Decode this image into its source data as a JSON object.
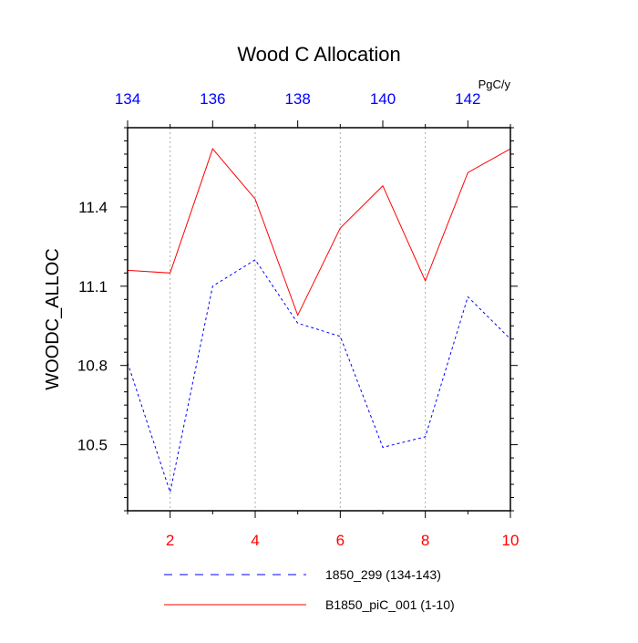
{
  "chart_data": {
    "type": "line",
    "title": "Wood C Allocation",
    "units": "PgC/y",
    "ylabel": "WOODC_ALLOC",
    "ylim": [
      10.25,
      11.7
    ],
    "yticks": [
      "10.5",
      "10.8",
      "11.1",
      "11.4"
    ],
    "x_bottom": {
      "lim": [
        1,
        10
      ],
      "ticks": [
        "2",
        "4",
        "6",
        "8",
        "10"
      ],
      "color": "#ff0000"
    },
    "x_top": {
      "lim": [
        134,
        143
      ],
      "ticks": [
        "134",
        "136",
        "138",
        "140",
        "142"
      ],
      "color": "#0000ff"
    },
    "grid": "vertical dotted at major x ticks",
    "legend_position": "bottom",
    "series": [
      {
        "name": "1850_299 (134-143)",
        "axis": "top",
        "color": "#0000ff",
        "style": "dashed",
        "x": [
          134,
          135,
          136,
          137,
          138,
          139,
          140,
          141,
          142,
          143
        ],
        "values": [
          10.81,
          10.32,
          11.1,
          11.2,
          10.96,
          10.91,
          10.49,
          10.53,
          11.06,
          10.9
        ]
      },
      {
        "name": "B1850_piC_001 (1-10)",
        "axis": "bottom",
        "color": "#ff0000",
        "style": "solid",
        "x": [
          1,
          2,
          3,
          4,
          5,
          6,
          7,
          8,
          9,
          10
        ],
        "values": [
          11.16,
          11.15,
          11.62,
          11.43,
          10.99,
          11.32,
          11.48,
          11.12,
          11.53,
          11.62
        ]
      }
    ]
  }
}
